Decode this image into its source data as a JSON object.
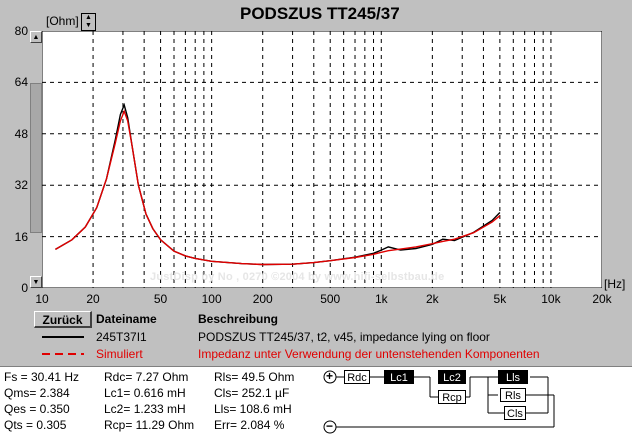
{
  "chart_data": {
    "type": "line",
    "title": "PODSZUS TT245/37",
    "ylabel": "[Ohm]",
    "xlabel": "[Hz]",
    "xscale": "log",
    "xlim": [
      10,
      20000
    ],
    "ylim": [
      0,
      80
    ],
    "grid": true,
    "yticks": [
      "80",
      "64",
      "48",
      "32",
      "16",
      "0"
    ],
    "xticks": [
      "10",
      "20",
      "50",
      "100",
      "200",
      "500",
      "1k",
      "2k",
      "5k",
      "10k",
      "20k"
    ],
    "series": [
      {
        "name": "245T37I1",
        "color": "#000000",
        "x": [
          12,
          15,
          18,
          21,
          24,
          27,
          29,
          30.5,
          32,
          34,
          37,
          41,
          45,
          50,
          60,
          70,
          80,
          100,
          150,
          200,
          300,
          400,
          500,
          700,
          900,
          1000,
          1100,
          1300,
          1600,
          2000,
          2300,
          2700,
          3500,
          4500,
          5000
        ],
        "y": [
          12,
          15,
          19,
          25,
          34,
          46,
          54,
          57,
          53,
          44,
          32,
          23,
          18.5,
          15,
          11.5,
          10,
          9.2,
          8.3,
          7.6,
          7.3,
          7.4,
          7.9,
          8.5,
          9.6,
          10.8,
          11.8,
          12.8,
          11.8,
          12.3,
          13.6,
          15.2,
          14.8,
          17.3,
          21,
          23.5
        ]
      },
      {
        "name": "Simuliert",
        "color": "#e00000",
        "x": [
          12,
          15,
          18,
          21,
          24,
          27,
          29,
          30.5,
          32,
          34,
          37,
          41,
          45,
          50,
          60,
          70,
          80,
          100,
          150,
          200,
          300,
          400,
          500,
          700,
          900,
          1000,
          1100,
          1300,
          1600,
          2000,
          2300,
          2700,
          3500,
          4500,
          5000
        ],
        "y": [
          12,
          15,
          19,
          25,
          34,
          45,
          52,
          55,
          52,
          44,
          32,
          23,
          18.5,
          15,
          11.5,
          10,
          9.2,
          8.3,
          7.6,
          7.3,
          7.4,
          7.9,
          8.5,
          9.5,
          10.5,
          11.1,
          11.6,
          12.1,
          12.8,
          13.8,
          14.5,
          15.2,
          17.2,
          20.5,
          22.5
        ]
      }
    ],
    "watermark": "JustDisp by No , 0270 ©2004 by www.hifi-selbstbau.de"
  },
  "legend": {
    "back_button": "Zurück",
    "col_name": "Dateiname",
    "col_desc": "Beschreibung",
    "rows": [
      {
        "name": "245T37I1",
        "desc": "PODSZUS TT245/37, t2, v45, impedance lying on floor",
        "color": "#000000",
        "style": "solid"
      },
      {
        "name": "Simuliert",
        "desc": "Impedanz unter Verwendung der untenstehenden Komponenten",
        "color": "#e00000",
        "style": "dashed"
      }
    ]
  },
  "params": {
    "col1": [
      "Fs   = 30.41 Hz",
      "Qms= 2.384",
      "Qes = 0.350",
      "Qts = 0.305"
    ],
    "col2": [
      "Rdc=  7.27 Ohm",
      "Lc1= 0.616 mH",
      "Lc2= 1.233 mH",
      "Rcp= 11.29 Ohm"
    ],
    "col3": [
      "Rls=   49.5 Ohm",
      "Cls= 252.1 µF",
      "Lls= 108.6 mH",
      "Err= 2.084 %"
    ]
  },
  "circuit": {
    "plus": "+",
    "minus": "−",
    "components": [
      "Rdc",
      "Lc1",
      "Lc2",
      "Rcp",
      "Lls",
      "Rls",
      "Cls"
    ]
  },
  "spinner": {
    "up": "▲",
    "down": "▼"
  },
  "scroll": {
    "up": "▲",
    "down": "▼"
  }
}
